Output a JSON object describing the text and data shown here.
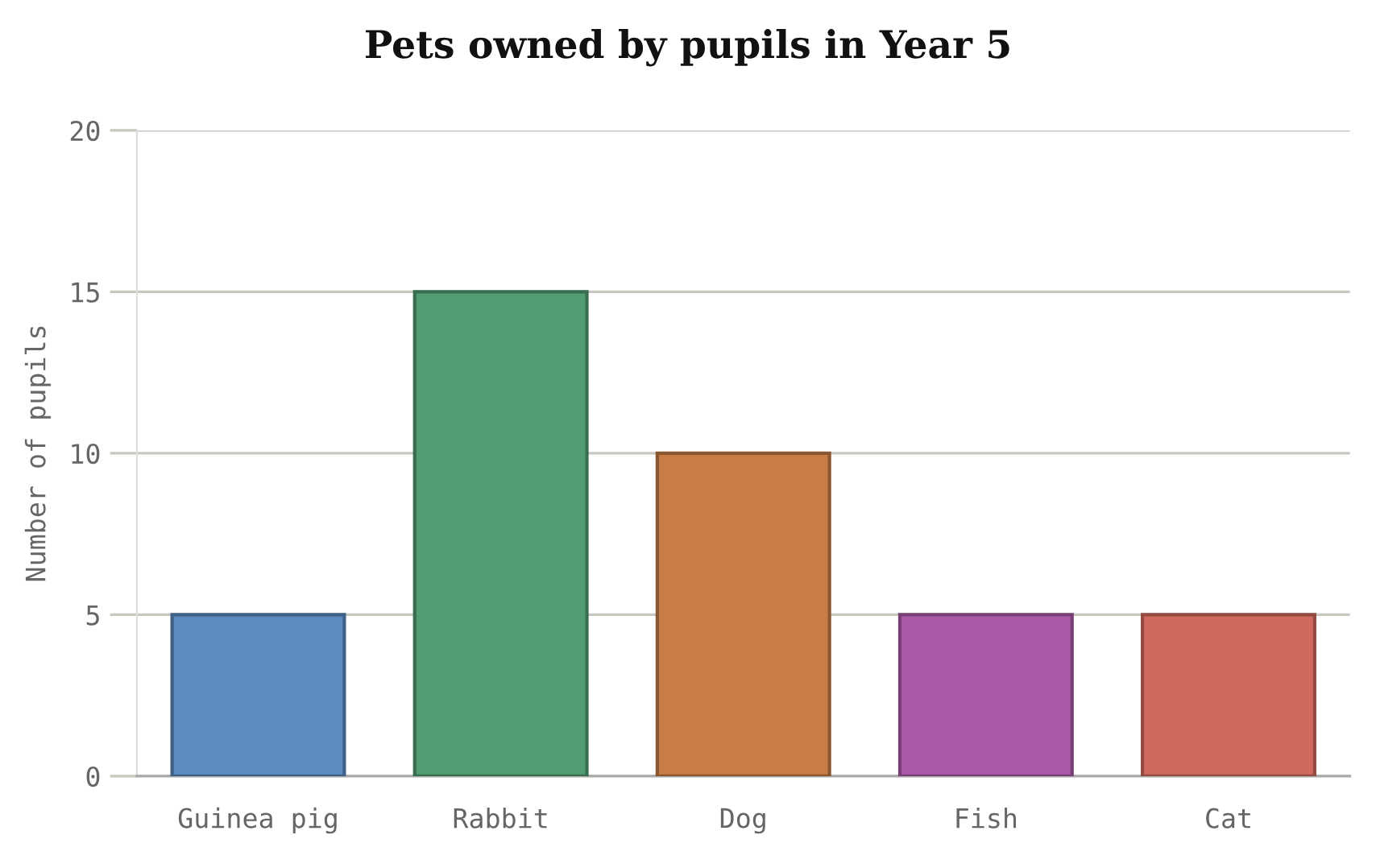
{
  "chart_data": {
    "type": "bar",
    "title": "Pets owned by pupils in Year 5",
    "ylabel": "Number of pupils",
    "categories": [
      "Guinea pig",
      "Rabbit",
      "Dog",
      "Fish",
      "Cat"
    ],
    "values": [
      5,
      15,
      10,
      5,
      5
    ],
    "colors": [
      "#5b8bc0",
      "#529c72",
      "#c77d45",
      "#ab5aa8",
      "#d0695d"
    ],
    "ylim": [
      0,
      20
    ],
    "yticks": [
      0,
      5,
      10,
      15,
      20
    ],
    "grid": "y"
  }
}
